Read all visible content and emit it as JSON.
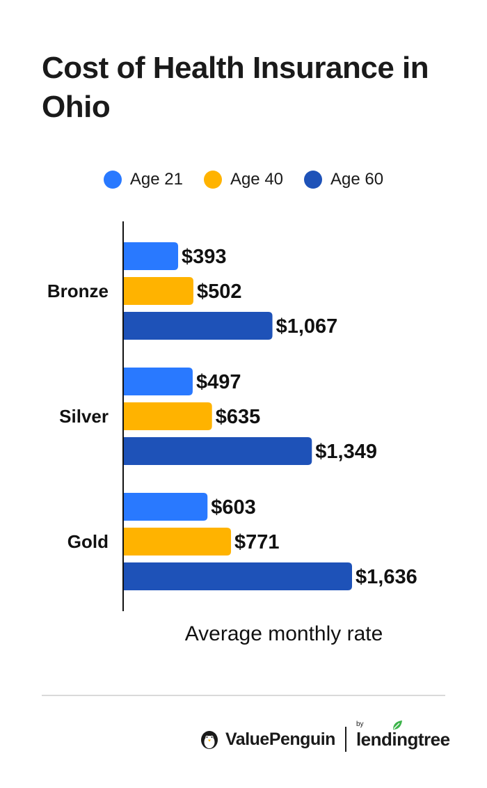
{
  "chart_data": {
    "type": "bar",
    "orientation": "horizontal",
    "title": "Cost of Health Insurance in Ohio",
    "xlabel": "Average monthly rate",
    "categories": [
      "Bronze",
      "Silver",
      "Gold"
    ],
    "series": [
      {
        "name": "Age 21",
        "color": "#2979FF",
        "values": [
          393,
          497,
          603
        ],
        "labels": [
          "$393",
          "$497",
          "$603"
        ]
      },
      {
        "name": "Age 40",
        "color": "#FFB300",
        "values": [
          502,
          635,
          771
        ],
        "labels": [
          "$502",
          "$635",
          "$771"
        ]
      },
      {
        "name": "Age 60",
        "color": "#1E52B8",
        "values": [
          1067,
          1349,
          1636
        ],
        "labels": [
          "$1,067",
          "$1,349",
          "$1,636"
        ]
      }
    ],
    "xlim": [
      0,
      1636
    ],
    "legend_position": "top",
    "grid": false
  },
  "footer": {
    "brand": "ValuePenguin",
    "by": "by",
    "partner": "lendingtree"
  },
  "icons": {
    "brand_icon": "penguin-icon",
    "partner_icon": "leaf-icon"
  }
}
